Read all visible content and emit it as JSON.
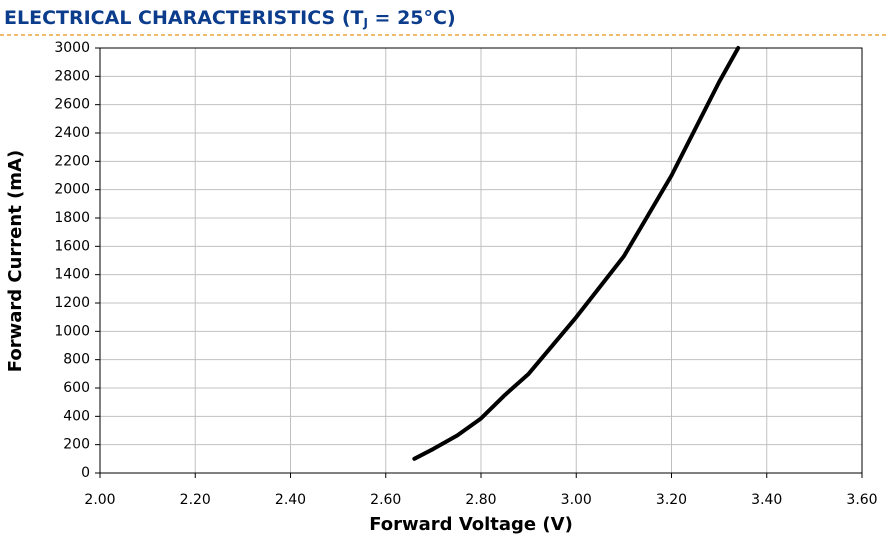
{
  "chart_data": {
    "type": "line",
    "title": [
      "ELECTRICAL CHARACTERISTICS (T",
      "J",
      " = 25°C)"
    ],
    "x_label": "Forward Voltage (V)",
    "y_label": "Forward Current (mA)",
    "series": [
      {
        "name": "Forward Current",
        "color": "#000000",
        "x": [
          2.66,
          2.7,
          2.75,
          2.8,
          2.85,
          2.9,
          3.0,
          3.1,
          3.2,
          3.3,
          3.34
        ],
        "values": [
          100,
          170,
          265,
          385,
          550,
          700,
          1100,
          1530,
          2100,
          2760,
          3000
        ]
      }
    ],
    "xlim": [
      2.0,
      3.6
    ],
    "xticks": [
      {
        "value": 2.0,
        "label": "2.00"
      },
      {
        "value": 2.2,
        "label": "2.20"
      },
      {
        "value": 2.4,
        "label": "2.40"
      },
      {
        "value": 2.6,
        "label": "2.60"
      },
      {
        "value": 2.8,
        "label": "2.80"
      },
      {
        "value": 3.0,
        "label": "3.00"
      },
      {
        "value": 3.2,
        "label": "3.20"
      },
      {
        "value": 3.4,
        "label": "3.40"
      },
      {
        "value": 3.6,
        "label": "3.60"
      }
    ],
    "ylim": [
      0,
      3000
    ],
    "yticks": [
      0,
      200,
      400,
      600,
      800,
      1000,
      1200,
      1400,
      1600,
      1800,
      2000,
      2200,
      2400,
      2600,
      2800,
      3000
    ],
    "grid": true
  }
}
